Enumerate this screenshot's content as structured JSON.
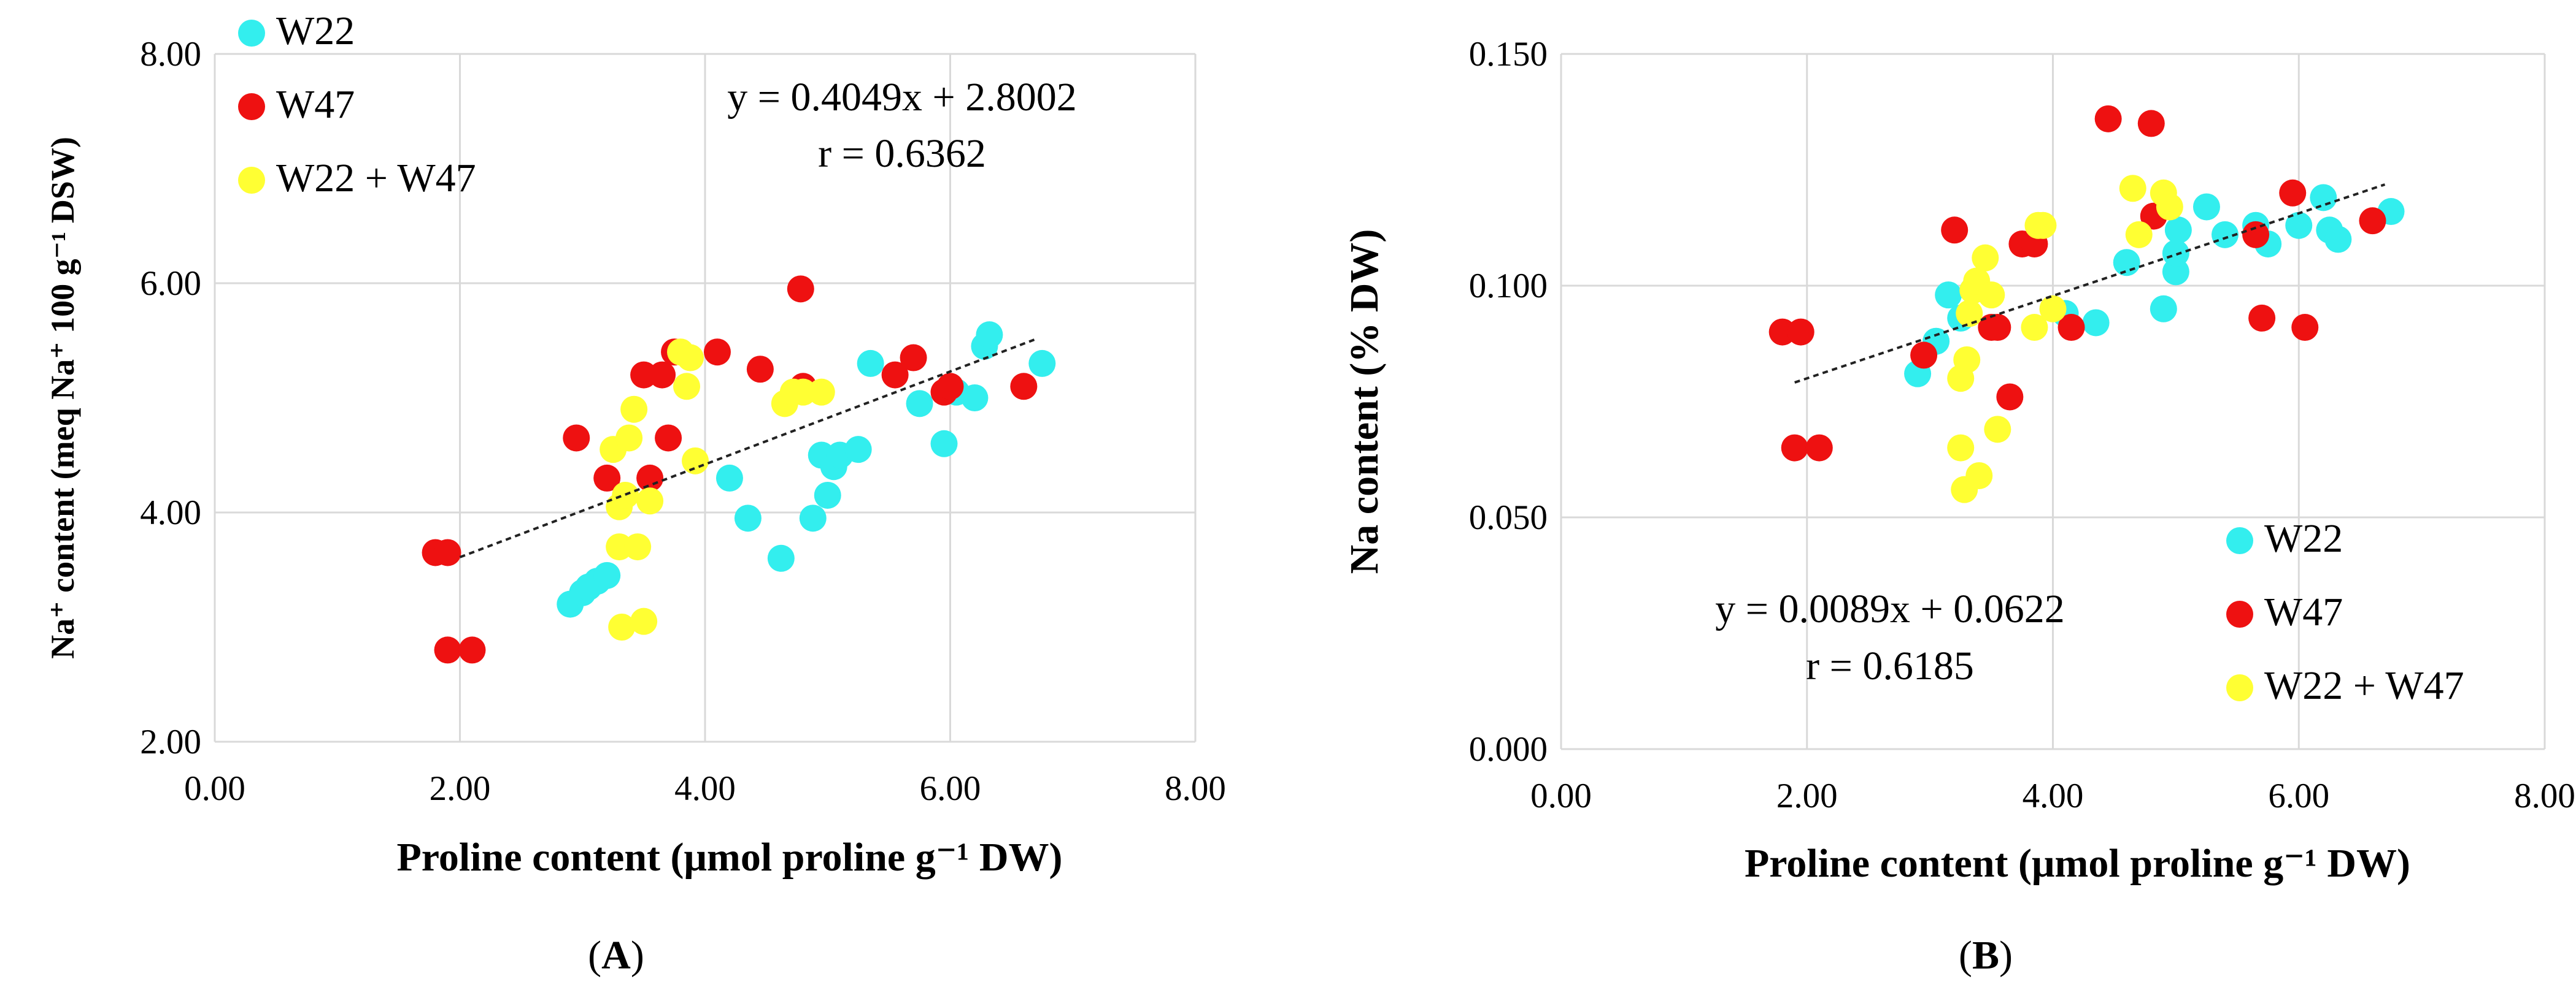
{
  "chart_data": [
    {
      "id": "A",
      "type": "scatter",
      "caption_open": "(",
      "caption_letter": "A",
      "caption_close": ")",
      "xlabel": "Proline content (μmol proline g⁻¹ DW)",
      "ylabel": "Na⁺ content (meq Na⁺ 100 g⁻¹ DSW)",
      "xlim": [
        0,
        8
      ],
      "ylim": [
        2,
        8
      ],
      "xticks": [
        "0.00",
        "2.00",
        "4.00",
        "6.00",
        "8.00"
      ],
      "yticks": [
        "2.00",
        "4.00",
        "6.00",
        "8.00"
      ],
      "legend_position": "top-left",
      "equation": "y = 0.4049x + 2.8002",
      "r_label": "r = 0.6362",
      "trendline": {
        "slope": 0.4049,
        "intercept": 2.8002,
        "x_range": [
          2.0,
          6.7
        ]
      },
      "series": [
        {
          "name": "W22",
          "color": "#33eeee",
          "points": [
            [
              2.9,
              3.2
            ],
            [
              3.0,
              3.3
            ],
            [
              3.05,
              3.35
            ],
            [
              3.12,
              3.4
            ],
            [
              3.2,
              3.45
            ],
            [
              4.2,
              4.3
            ],
            [
              4.35,
              3.95
            ],
            [
              4.62,
              3.6
            ],
            [
              4.88,
              3.95
            ],
            [
              4.95,
              4.5
            ],
            [
              5.0,
              4.15
            ],
            [
              5.05,
              4.4
            ],
            [
              5.1,
              4.5
            ],
            [
              5.25,
              4.55
            ],
            [
              5.35,
              5.3
            ],
            [
              5.75,
              4.95
            ],
            [
              5.95,
              4.6
            ],
            [
              6.05,
              5.05
            ],
            [
              6.2,
              5.0
            ],
            [
              6.28,
              5.45
            ],
            [
              6.32,
              5.55
            ],
            [
              6.75,
              5.3
            ]
          ]
        },
        {
          "name": "W47",
          "color": "#ee1111",
          "points": [
            [
              1.8,
              3.65
            ],
            [
              1.9,
              3.65
            ],
            [
              1.9,
              2.8
            ],
            [
              2.1,
              2.8
            ],
            [
              2.95,
              4.65
            ],
            [
              3.2,
              4.3
            ],
            [
              3.5,
              5.2
            ],
            [
              3.55,
              4.3
            ],
            [
              3.65,
              5.2
            ],
            [
              3.7,
              4.65
            ],
            [
              3.75,
              5.4
            ],
            [
              4.1,
              5.4
            ],
            [
              4.45,
              5.25
            ],
            [
              4.78,
              5.95
            ],
            [
              4.8,
              5.1
            ],
            [
              5.55,
              5.2
            ],
            [
              5.7,
              5.35
            ],
            [
              5.95,
              5.05
            ],
            [
              6.0,
              5.1
            ],
            [
              6.6,
              5.1
            ]
          ]
        },
        {
          "name": "W22 + W47",
          "color": "#ffff33",
          "points": [
            [
              3.25,
              4.55
            ],
            [
              3.3,
              4.05
            ],
            [
              3.3,
              3.7
            ],
            [
              3.32,
              3.0
            ],
            [
              3.35,
              4.15
            ],
            [
              3.38,
              4.65
            ],
            [
              3.42,
              4.9
            ],
            [
              3.45,
              3.7
            ],
            [
              3.5,
              3.05
            ],
            [
              3.55,
              4.1
            ],
            [
              3.8,
              5.4
            ],
            [
              3.85,
              5.1
            ],
            [
              3.88,
              5.35
            ],
            [
              3.92,
              4.45
            ],
            [
              4.65,
              4.95
            ],
            [
              4.72,
              5.05
            ],
            [
              4.8,
              5.05
            ],
            [
              4.95,
              5.05
            ]
          ]
        }
      ]
    },
    {
      "id": "B",
      "type": "scatter",
      "caption_open": "(",
      "caption_letter": "B",
      "caption_close": ")",
      "xlabel": "Proline content (μmol proline g⁻¹ DW)",
      "ylabel": "Na content (% DW)",
      "xlim": [
        0,
        8
      ],
      "ylim": [
        0,
        0.15
      ],
      "xticks": [
        "0.00",
        "2.00",
        "4.00",
        "6.00",
        "8.00"
      ],
      "yticks": [
        "0.000",
        "0.050",
        "0.100",
        "0.150"
      ],
      "legend_position": "bottom-right",
      "equation": "y = 0.0089x + 0.0622",
      "r_label": "r = 0.6185",
      "trendline": {
        "slope": 0.0089,
        "intercept": 0.0622,
        "x_range": [
          1.9,
          6.7
        ]
      },
      "series": [
        {
          "name": "W22",
          "color": "#33eeee",
          "points": [
            [
              2.9,
              0.081
            ],
            [
              3.05,
              0.088
            ],
            [
              3.15,
              0.098
            ],
            [
              3.25,
              0.093
            ],
            [
              3.35,
              0.099
            ],
            [
              4.1,
              0.094
            ],
            [
              4.35,
              0.092
            ],
            [
              4.6,
              0.105
            ],
            [
              4.9,
              0.095
            ],
            [
              5.0,
              0.103
            ],
            [
              5.0,
              0.107
            ],
            [
              5.02,
              0.112
            ],
            [
              5.25,
              0.117
            ],
            [
              5.4,
              0.111
            ],
            [
              5.65,
              0.113
            ],
            [
              5.75,
              0.109
            ],
            [
              6.0,
              0.113
            ],
            [
              6.2,
              0.119
            ],
            [
              6.25,
              0.112
            ],
            [
              6.32,
              0.11
            ],
            [
              6.75,
              0.116
            ]
          ]
        },
        {
          "name": "W47",
          "color": "#ee1111",
          "points": [
            [
              1.8,
              0.09
            ],
            [
              1.9,
              0.065
            ],
            [
              1.95,
              0.09
            ],
            [
              2.1,
              0.065
            ],
            [
              2.95,
              0.085
            ],
            [
              3.2,
              0.112
            ],
            [
              3.5,
              0.091
            ],
            [
              3.55,
              0.091
            ],
            [
              3.65,
              0.076
            ],
            [
              3.75,
              0.109
            ],
            [
              3.85,
              0.109
            ],
            [
              4.15,
              0.091
            ],
            [
              4.45,
              0.136
            ],
            [
              4.8,
              0.135
            ],
            [
              4.82,
              0.115
            ],
            [
              5.65,
              0.111
            ],
            [
              5.7,
              0.093
            ],
            [
              5.95,
              0.12
            ],
            [
              6.05,
              0.091
            ],
            [
              6.6,
              0.114
            ]
          ]
        },
        {
          "name": "W22 + W47",
          "color": "#ffff33",
          "points": [
            [
              3.25,
              0.08
            ],
            [
              3.25,
              0.065
            ],
            [
              3.28,
              0.056
            ],
            [
              3.3,
              0.084
            ],
            [
              3.32,
              0.094
            ],
            [
              3.35,
              0.099
            ],
            [
              3.38,
              0.101
            ],
            [
              3.4,
              0.059
            ],
            [
              3.45,
              0.106
            ],
            [
              3.5,
              0.098
            ],
            [
              3.55,
              0.069
            ],
            [
              3.85,
              0.091
            ],
            [
              3.88,
              0.113
            ],
            [
              3.92,
              0.113
            ],
            [
              4.0,
              0.095
            ],
            [
              4.65,
              0.121
            ],
            [
              4.7,
              0.111
            ],
            [
              4.9,
              0.12
            ],
            [
              4.95,
              0.117
            ]
          ]
        }
      ]
    }
  ]
}
